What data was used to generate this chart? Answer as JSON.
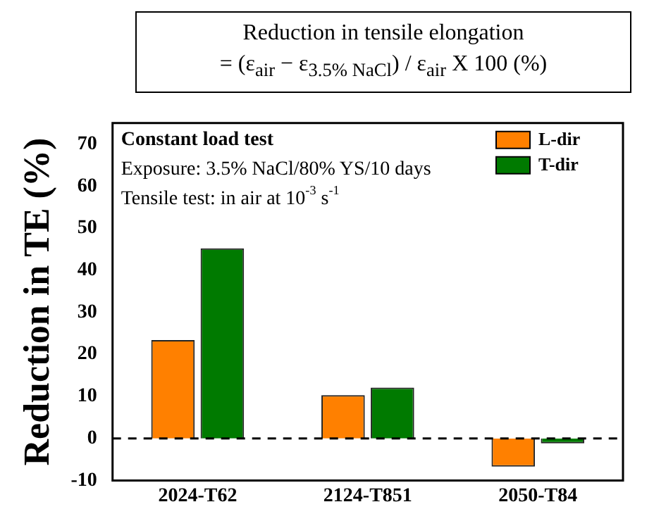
{
  "chart_data": {
    "type": "bar",
    "ylabel": "Reduction in TE (%)",
    "categories": [
      "2024-T62",
      "2124-T851",
      "2050-T84"
    ],
    "series": [
      {
        "name": "L-dir",
        "color": "#ff8000",
        "values": [
          23.4,
          10.3,
          -6.7
        ]
      },
      {
        "name": "T-dir",
        "color": "#007a00",
        "values": [
          45.2,
          12.1,
          -1.2
        ]
      }
    ],
    "ylim": [
      -10,
      75
    ],
    "yticks": [
      -10,
      0,
      10,
      20,
      30,
      40,
      50,
      60,
      70
    ],
    "grid": false,
    "legend": "top right",
    "ref_lines": [
      {
        "axis": "y",
        "value": 0,
        "color": "#000000",
        "line_style": "dashed"
      }
    ],
    "annotations": [
      "Reduction in tensile elongation",
      "= (ε$_{air}$ − ε$_{3.5% NaCl}$) / ε$_{air}$ X 100 (%)",
      "Constant load test",
      "Exposure: 3.5% NaCl/80% YS/10 days",
      "Tensile test: in air at 10$^{-3}$ s$^{-1}$"
    ]
  }
}
